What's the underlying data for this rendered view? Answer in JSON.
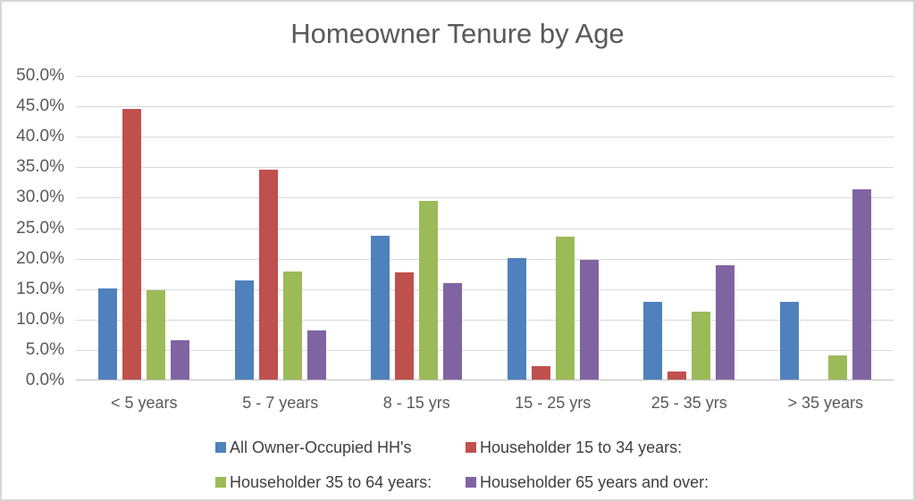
{
  "chart_data": {
    "type": "bar",
    "title": "Homeowner Tenure by Age",
    "categories": [
      "< 5 years",
      "5 - 7 years",
      "8 - 15 yrs",
      "15 - 25 yrs",
      "25 - 35 yrs",
      "> 35 years"
    ],
    "series": [
      {
        "name": "All Owner-Occupied HH's",
        "color": "#4F81BD",
        "values": [
          15.0,
          16.3,
          23.6,
          20.0,
          12.8,
          12.7
        ]
      },
      {
        "name": "Householder 15 to 34 years:",
        "color": "#C0504D",
        "values": [
          44.5,
          34.4,
          17.6,
          2.2,
          1.3,
          0.0
        ]
      },
      {
        "name": "Householder 35 to 64 years:",
        "color": "#9BBB59",
        "values": [
          14.6,
          17.7,
          29.4,
          23.5,
          11.1,
          3.9
        ]
      },
      {
        "name": "Householder 65 years and over:",
        "color": "#8064A2",
        "values": [
          6.5,
          8.1,
          15.8,
          19.6,
          18.8,
          31.3
        ]
      }
    ],
    "xlabel": "",
    "ylabel": "",
    "ylim": [
      0,
      50
    ],
    "y_ticks": [
      "50.0%",
      "45.0%",
      "40.0%",
      "35.0%",
      "30.0%",
      "25.0%",
      "20.0%",
      "15.0%",
      "10.0%",
      "5.0%",
      "0.0%"
    ],
    "grid": true,
    "legend_position": "bottom",
    "colors": {
      "background": "#FFFFFF",
      "frame_border": "#D6D6D6",
      "gridline": "#D9D9D9",
      "axis_line": "#BFBFBF",
      "title_text": "#595959",
      "tick_text": "#595959",
      "legend_text": "#3F3F3F"
    }
  }
}
